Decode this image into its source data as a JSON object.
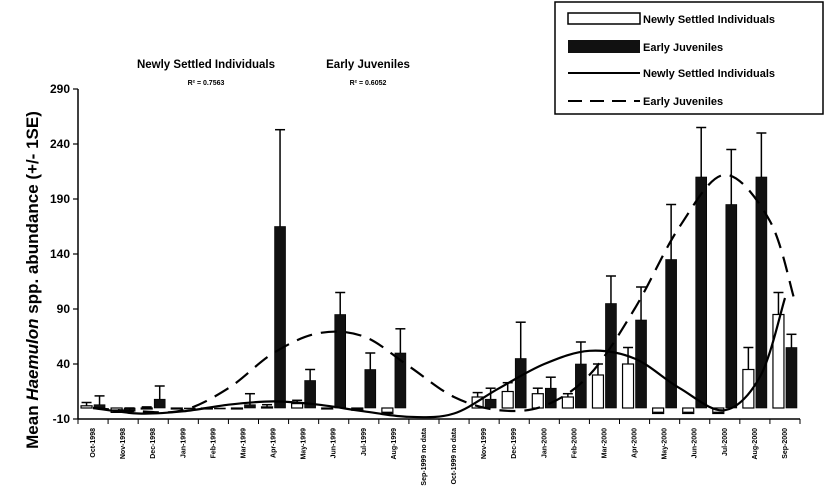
{
  "chart_data": {
    "type": "bar",
    "ylabel": "Mean Haemulon spp. abundance (+/- 1SE)",
    "ylabel_parts": {
      "pre": "Mean ",
      "italic": "Haemulon",
      "post": " spp. abundance (+/- 1SE)"
    },
    "ylim": [
      -10,
      290
    ],
    "yticks": [
      -10,
      40,
      90,
      140,
      190,
      240,
      290
    ],
    "categories": [
      "Oct-1998",
      "Nov-1998",
      "Dec-1998",
      "Jan-1999",
      "Feb-1999",
      "Mar-1999",
      "Apr-1999",
      "May-1999",
      "Jun-1999",
      "Jul-1999",
      "Aug-1999",
      "Sep-1999 no data",
      "Oct-1999 no data",
      "Nov-1999",
      "Dec-1999",
      "Jan-2000",
      "Feb-2000",
      "Mar-2000",
      "Apr-2000",
      "May-2000",
      "Jun-2000",
      "Jul-2000",
      "Aug-2000",
      "Sep-2000"
    ],
    "series": [
      {
        "name": "Newly Settled Individuals",
        "kind": "bar",
        "fill": "#ffffff",
        "values": [
          2,
          -4,
          0,
          0,
          0,
          0,
          1,
          4,
          0,
          -2,
          -5,
          null,
          null,
          10,
          15,
          13,
          10,
          30,
          40,
          -5,
          -5,
          -5,
          35,
          85
        ],
        "errors": [
          3,
          2,
          1,
          0,
          0,
          0,
          2,
          3,
          0,
          1,
          1,
          null,
          null,
          4,
          8,
          5,
          3,
          10,
          15,
          1,
          1,
          1,
          20,
          20
        ]
      },
      {
        "name": "Early Juveniles",
        "kind": "bar",
        "fill": "#111111",
        "values": [
          3,
          -3,
          8,
          0,
          0,
          3,
          165,
          25,
          85,
          35,
          50,
          null,
          null,
          8,
          45,
          18,
          40,
          95,
          80,
          135,
          210,
          185,
          210,
          55
        ],
        "errors": [
          8,
          3,
          12,
          0,
          0,
          10,
          88,
          10,
          20,
          15,
          22,
          null,
          null,
          10,
          33,
          10,
          20,
          25,
          30,
          50,
          45,
          50,
          40,
          12
        ]
      }
    ],
    "trendlines": [
      {
        "name": "Newly Settled Individuals",
        "style": "solid",
        "x": [
          0,
          1.5,
          3,
          4.5,
          6,
          7.5,
          9,
          10.5,
          12,
          13.5,
          15,
          16.5,
          18,
          19.5,
          21,
          22.2,
          23
        ],
        "y": [
          0,
          -5,
          -3,
          3,
          6,
          3,
          -3,
          -8,
          -5,
          18,
          40,
          52,
          45,
          18,
          -2,
          30,
          100
        ]
      },
      {
        "name": "Early Juveniles",
        "style": "dashed",
        "x": [
          0,
          1.5,
          3,
          4.5,
          6,
          7.5,
          9,
          10.5,
          12,
          13.5,
          15,
          16.5,
          18,
          19.5,
          21,
          22.5,
          23.3
        ],
        "y": [
          0,
          -3,
          -2,
          18,
          50,
          68,
          65,
          38,
          10,
          -2,
          2,
          30,
          90,
          165,
          212,
          170,
          100
        ]
      }
    ],
    "legend": [
      {
        "label": "Newly Settled Individuals",
        "symbol": "open-bar"
      },
      {
        "label": "Early Juveniles",
        "symbol": "filled-bar"
      },
      {
        "label": "Newly Settled Individuals",
        "symbol": "solid-line"
      },
      {
        "label": "Early Juveniles",
        "symbol": "dashed-line"
      }
    ],
    "legend_placement": "top-right",
    "annotations": [
      {
        "title": "Newly Settled Individuals",
        "r2": "R² = 0.7563"
      },
      {
        "title": "Early Juveniles",
        "r2": "R² = 0.6052"
      }
    ],
    "grid": false
  }
}
